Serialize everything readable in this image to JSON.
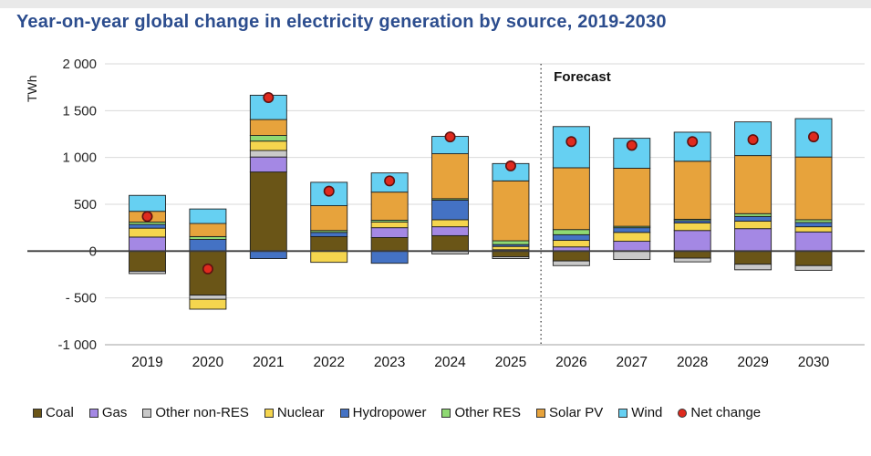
{
  "title": "Year-on-year global change in electricity generation by source, 2019-2030",
  "axis": {
    "unit_label": "TWh",
    "forecast_label": "Forecast",
    "y_ticks": [
      {
        "label": "2 000",
        "value": 2000
      },
      {
        "label": "1 500",
        "value": 1500
      },
      {
        "label": "1 000",
        "value": 1000
      },
      {
        "label": "500",
        "value": 500
      },
      {
        "label": "0",
        "value": 0
      },
      {
        "label": "- 500",
        "value": -500
      },
      {
        "label": "-1 000",
        "value": -1000
      }
    ]
  },
  "colors": {
    "title": "#2c4d8e",
    "gridline": "#d9d9d9",
    "zero_line": "#3a3a3a",
    "bottom_line": "#b3b3b3",
    "segment_border": "#1f1f1f",
    "tick_text": "#262626",
    "forecast_line": "#4d4d4d"
  },
  "chart_data": {
    "type": "bar",
    "stacked": true,
    "title": "Year-on-year global change in electricity generation by source, 2019-2030",
    "ylabel": "TWh",
    "ylim": [
      -1000,
      2000
    ],
    "y_tick_step": 500,
    "grid": true,
    "legend_position": "bottom",
    "categories": [
      "2019",
      "2020",
      "2021",
      "2022",
      "2023",
      "2024",
      "2025",
      "2026",
      "2027",
      "2028",
      "2029",
      "2030"
    ],
    "forecast_from_category": "2026",
    "series": [
      {
        "name": "Coal",
        "color": "#6a5517",
        "values": [
          -215,
          -470,
          845,
          155,
          145,
          165,
          -60,
          -105,
          0,
          -75,
          -140,
          -155
        ]
      },
      {
        "name": "Gas",
        "color": "#a488e4",
        "values": [
          150,
          0,
          160,
          0,
          105,
          95,
          15,
          45,
          105,
          220,
          240,
          205
        ]
      },
      {
        "name": "Other non-RES",
        "color": "#c9c9c9",
        "values": [
          -25,
          -45,
          70,
          0,
          0,
          -30,
          -20,
          -50,
          -90,
          -40,
          -60,
          -50
        ]
      },
      {
        "name": "Nuclear",
        "color": "#f5d54e",
        "values": [
          95,
          -105,
          100,
          -120,
          60,
          75,
          35,
          70,
          95,
          80,
          80,
          55
        ]
      },
      {
        "name": "Hydropower",
        "color": "#4472c4",
        "values": [
          40,
          125,
          -80,
          45,
          -130,
          210,
          20,
          60,
          50,
          25,
          50,
          45
        ]
      },
      {
        "name": "Other RES",
        "color": "#8fd973",
        "values": [
          25,
          30,
          60,
          20,
          20,
          15,
          40,
          55,
          15,
          15,
          30,
          30
        ]
      },
      {
        "name": "Solar PV",
        "color": "#e7a33c",
        "values": [
          115,
          140,
          170,
          265,
          300,
          480,
          640,
          660,
          620,
          620,
          620,
          670
        ]
      },
      {
        "name": "Wind",
        "color": "#66d0f2",
        "values": [
          170,
          155,
          260,
          250,
          205,
          185,
          185,
          440,
          320,
          310,
          360,
          410
        ]
      }
    ],
    "net_change": {
      "name": "Net change",
      "color": "#df2a1e",
      "border": "#5f1110",
      "values": [
        370,
        -190,
        1640,
        640,
        750,
        1220,
        910,
        1170,
        1130,
        1170,
        1190,
        1220
      ]
    }
  },
  "legend": {
    "items": [
      {
        "label": "Coal",
        "color": "#6a5517",
        "shape": "square"
      },
      {
        "label": "Gas",
        "color": "#a488e4",
        "shape": "square"
      },
      {
        "label": "Other non-RES",
        "color": "#c9c9c9",
        "shape": "square"
      },
      {
        "label": "Nuclear",
        "color": "#f5d54e",
        "shape": "square"
      },
      {
        "label": "Hydropower",
        "color": "#4472c4",
        "shape": "square"
      },
      {
        "label": "Other RES",
        "color": "#8fd973",
        "shape": "square"
      },
      {
        "label": "Solar PV",
        "color": "#e7a33c",
        "shape": "square"
      },
      {
        "label": "Wind",
        "color": "#66d0f2",
        "shape": "square"
      },
      {
        "label": "Net change",
        "color": "#df2a1e",
        "shape": "circle"
      }
    ]
  }
}
